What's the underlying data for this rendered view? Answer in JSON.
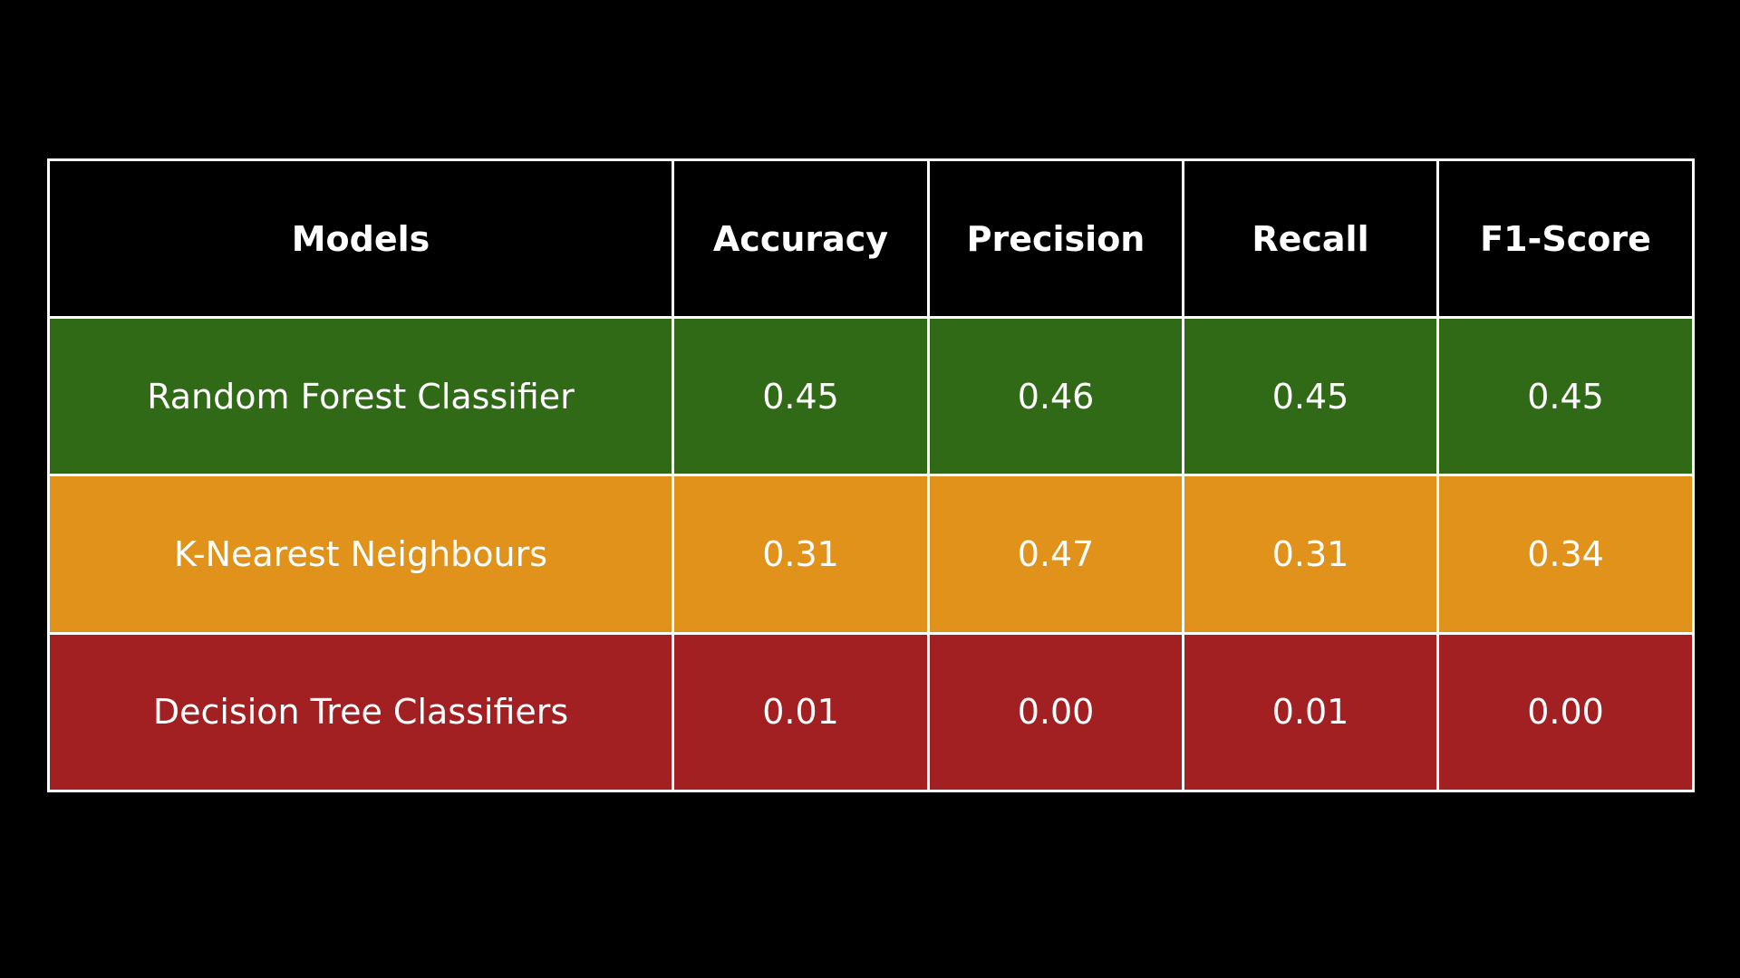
{
  "chart_data": {
    "type": "table",
    "columns": [
      "Models",
      "Accuracy",
      "Precision",
      "Recall",
      "F1-Score"
    ],
    "rows": [
      {
        "model": "Random Forest Classifier",
        "values": [
          "0.45",
          "0.46",
          "0.45",
          "0.45"
        ],
        "color": "#306a17"
      },
      {
        "model": "K-Nearest Neighbours",
        "values": [
          "0.31",
          "0.47",
          "0.31",
          "0.34"
        ],
        "color": "#e0921a"
      },
      {
        "model": "Decision Tree Classifiers",
        "values": [
          "0.01",
          "0.00",
          "0.01",
          "0.00"
        ],
        "color": "#a32022"
      }
    ]
  },
  "colors": {
    "background": "#000000",
    "grid": "#ffffff",
    "text": "#ffffff"
  }
}
